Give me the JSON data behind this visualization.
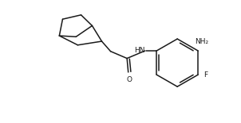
{
  "bg_color": "#ffffff",
  "line_color": "#1a1a1a",
  "text_color": "#1a1a1a",
  "label_HN": "HN",
  "label_NH2": "NH₂",
  "label_O": "O",
  "label_F": "F",
  "figsize": [
    3.02,
    1.55
  ],
  "dpi": 100,
  "lw": 1.1
}
